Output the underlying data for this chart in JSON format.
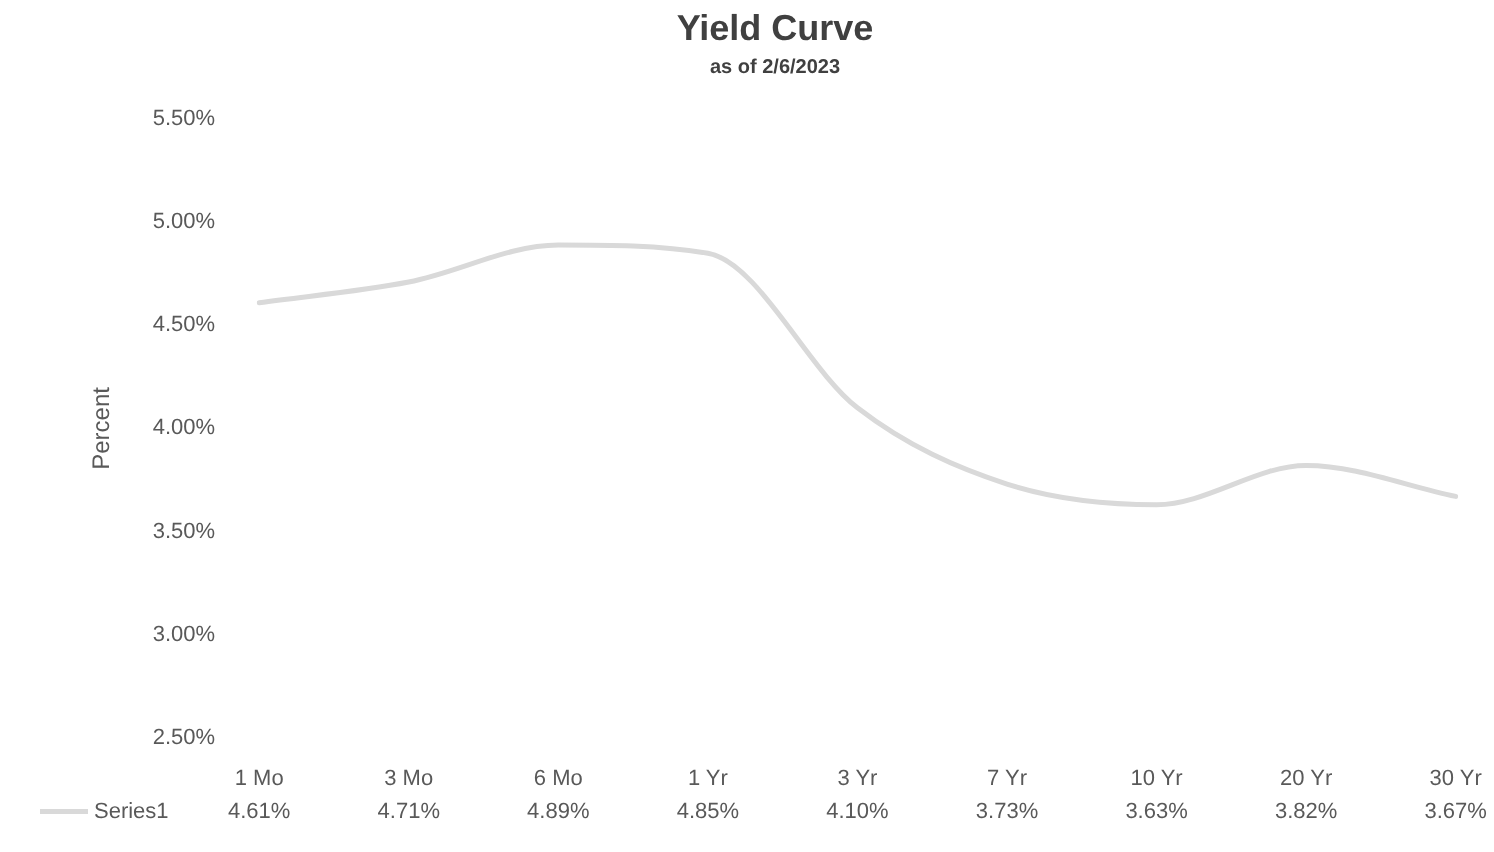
{
  "chart_data": {
    "type": "line",
    "title": "Yield Curve",
    "subtitle": "as of 2/6/2023",
    "ylabel": "Percent",
    "categories": [
      "1 Mo",
      "3 Mo",
      "6 Mo",
      "1 Yr",
      "3 Yr",
      "7 Yr",
      "10 Yr",
      "20 Yr",
      "30 Yr"
    ],
    "series": [
      {
        "name": "Series1",
        "color": "#d9d9d9",
        "values": [
          4.61,
          4.71,
          4.89,
          4.85,
          4.1,
          3.73,
          3.63,
          3.82,
          3.67
        ],
        "value_labels": [
          "4.61%",
          "4.71%",
          "4.89%",
          "4.85%",
          "4.10%",
          "3.73%",
          "3.63%",
          "3.82%",
          "3.67%"
        ]
      }
    ],
    "ylim": [
      2.5,
      5.5
    ],
    "yticks": [
      {
        "value": 2.5,
        "label": "2.50%"
      },
      {
        "value": 3,
        "label": "3.00%"
      },
      {
        "value": 3.5,
        "label": "3.50%"
      },
      {
        "value": 4,
        "label": "4.00%"
      },
      {
        "value": 4.5,
        "label": "4.50%"
      },
      {
        "value": 5,
        "label": "5.00%"
      },
      {
        "value": 5.5,
        "label": "5.50%"
      }
    ],
    "grid": false,
    "legend": "bottom",
    "marker": "none",
    "line_style": "solid"
  }
}
